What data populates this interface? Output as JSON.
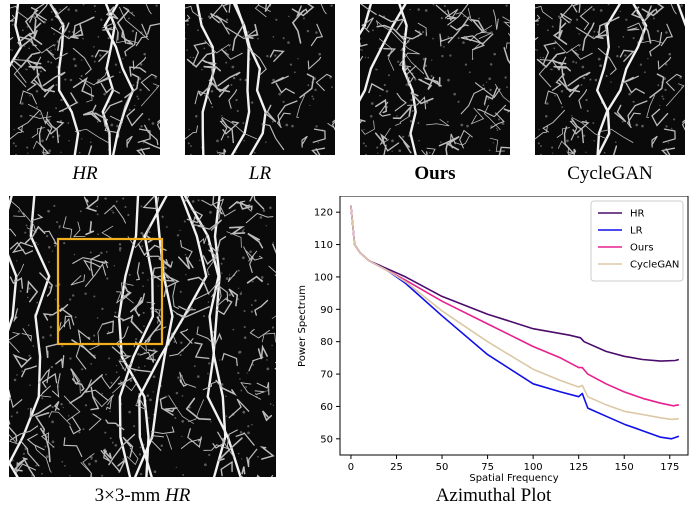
{
  "figure": {
    "panels": [
      {
        "label": "HR",
        "style": "italic",
        "blur": 0.3,
        "noise": 0.9
      },
      {
        "label": "LR",
        "style": "italic",
        "blur": 2.6,
        "noise": 0.6
      },
      {
        "label": "Ours",
        "style": "bold",
        "blur": 0.8,
        "noise": 0.8
      },
      {
        "label": "CycleGAN",
        "style": "normal",
        "blur": 1.4,
        "noise": 0.75
      }
    ],
    "overview_caption_prefix": "3×3-mm ",
    "overview_caption_em": "HR",
    "plot_caption": "Azimuthal Plot",
    "roi_color": "#f3b01d"
  },
  "chart_data": {
    "type": "line",
    "xlabel": "Spatial Frequency",
    "ylabel": "Power Spectrum",
    "xlim": [
      -6,
      185
    ],
    "ylim": [
      45,
      125
    ],
    "xticks": [
      0,
      25,
      50,
      75,
      100,
      125,
      150,
      175
    ],
    "yticks": [
      50,
      60,
      70,
      80,
      90,
      100,
      110,
      120
    ],
    "legend_position": "top-right",
    "series": [
      {
        "name": "HR",
        "color": "#4b0c6b",
        "points": [
          [
            0,
            122
          ],
          [
            2,
            110
          ],
          [
            5,
            107.5
          ],
          [
            10,
            105
          ],
          [
            20,
            102.5
          ],
          [
            30,
            100
          ],
          [
            50,
            94
          ],
          [
            75,
            88.5
          ],
          [
            100,
            84
          ],
          [
            120,
            82
          ],
          [
            126,
            81.2
          ],
          [
            128,
            80
          ],
          [
            140,
            77
          ],
          [
            150,
            75.5
          ],
          [
            160,
            74.5
          ],
          [
            170,
            74
          ],
          [
            178,
            74.2
          ],
          [
            180,
            74.5
          ]
        ]
      },
      {
        "name": "LR",
        "color": "#1010e8",
        "points": [
          [
            0,
            122
          ],
          [
            2,
            110
          ],
          [
            5,
            107.5
          ],
          [
            10,
            105
          ],
          [
            20,
            102
          ],
          [
            30,
            98
          ],
          [
            50,
            88
          ],
          [
            75,
            76
          ],
          [
            100,
            67
          ],
          [
            115,
            64.5
          ],
          [
            125,
            63
          ],
          [
            127,
            64
          ],
          [
            130,
            59.5
          ],
          [
            140,
            57
          ],
          [
            150,
            54.5
          ],
          [
            160,
            52.5
          ],
          [
            170,
            50.5
          ],
          [
            176,
            50
          ],
          [
            180,
            50.8
          ]
        ]
      },
      {
        "name": "Ours",
        "color": "#e8208e",
        "points": [
          [
            0,
            122
          ],
          [
            2,
            110
          ],
          [
            5,
            107.5
          ],
          [
            10,
            105
          ],
          [
            20,
            102
          ],
          [
            30,
            99
          ],
          [
            50,
            92.5
          ],
          [
            75,
            85.5
          ],
          [
            100,
            78.5
          ],
          [
            115,
            75
          ],
          [
            125,
            72
          ],
          [
            127,
            72
          ],
          [
            130,
            70
          ],
          [
            140,
            67
          ],
          [
            150,
            64.5
          ],
          [
            160,
            62.5
          ],
          [
            170,
            61
          ],
          [
            177,
            60.2
          ],
          [
            180,
            60.5
          ]
        ]
      },
      {
        "name": "CycleGAN",
        "color": "#dcc8a6",
        "points": [
          [
            0,
            122
          ],
          [
            2,
            110
          ],
          [
            5,
            107.5
          ],
          [
            10,
            105
          ],
          [
            20,
            102
          ],
          [
            30,
            98.5
          ],
          [
            50,
            89.5
          ],
          [
            75,
            80
          ],
          [
            100,
            71.5
          ],
          [
            115,
            68
          ],
          [
            125,
            66
          ],
          [
            127,
            66.5
          ],
          [
            130,
            63
          ],
          [
            140,
            60.5
          ],
          [
            150,
            58.5
          ],
          [
            160,
            57.5
          ],
          [
            170,
            56.5
          ],
          [
            176,
            56
          ],
          [
            180,
            56.2
          ]
        ]
      }
    ]
  }
}
